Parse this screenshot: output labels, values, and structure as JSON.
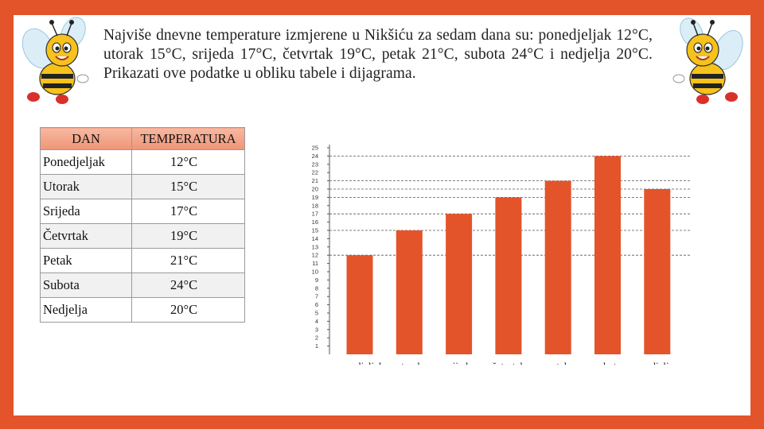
{
  "problem": {
    "text": "Najviše dnevne temperature izmjerene u Nikšiću za sedam dana su: ponedjeljak 12°C, utorak 15°C, srijeda 17°C, četvrtak 19°C, petak 21°C, subota 24°C i nedjelja 20°C. Prikazati ove podatke u obliku tabele i dijagrama."
  },
  "table": {
    "headers": [
      "DAN",
      "TEMPERATURA"
    ],
    "rows": [
      {
        "day": "Ponedjeljak",
        "temp": "12°C"
      },
      {
        "day": "Utorak",
        "temp": "15°C"
      },
      {
        "day": "Srijeda",
        "temp": "17°C"
      },
      {
        "day": "Četvrtak",
        "temp": "19°C"
      },
      {
        "day": "Petak",
        "temp": "21°C"
      },
      {
        "day": "Subota",
        "temp": "24°C"
      },
      {
        "day": "Nedjelja",
        "temp": "20°C"
      }
    ]
  },
  "chart_data": {
    "type": "bar",
    "categories": [
      "ponedjeljak",
      "utorak",
      "srijeda",
      "četvrtak",
      "petak",
      "subota",
      "nedjelja"
    ],
    "values": [
      12,
      15,
      17,
      19,
      21,
      24,
      20
    ],
    "ylim": [
      0,
      25
    ],
    "yticks": [
      1,
      2,
      3,
      4,
      5,
      6,
      7,
      8,
      9,
      10,
      11,
      12,
      13,
      14,
      15,
      16,
      17,
      18,
      19,
      20,
      21,
      22,
      23,
      24,
      25
    ],
    "title": "",
    "xlabel": "",
    "ylabel": "",
    "bar_color": "#e4542a",
    "grid": "dashed lines at bar tops"
  },
  "colors": {
    "accent": "#e4542a",
    "table_header": "#f2a488"
  }
}
